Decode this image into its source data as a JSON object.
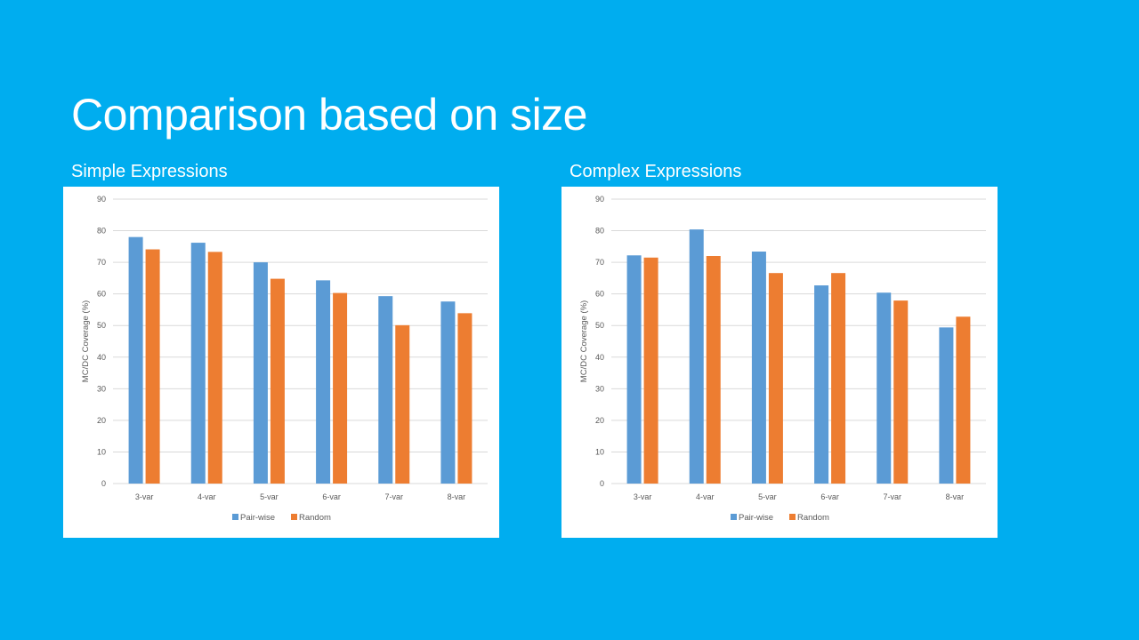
{
  "slide": {
    "title": "Comparison based on size",
    "left_subtitle": "Simple Expressions",
    "right_subtitle": "Complex Expressions"
  },
  "colors": {
    "background": "#00adef",
    "pair_wise": "#5b9bd5",
    "random": "#ed7d31",
    "gridline": "#d9d9d9"
  },
  "chart_data": [
    {
      "type": "bar",
      "title": "",
      "categories": [
        "3-var",
        "4-var",
        "5-var",
        "6-var",
        "7-var",
        "8-var"
      ],
      "series": [
        {
          "name": "Pair-wise",
          "values": [
            78,
            76.2,
            70,
            64.3,
            59.3,
            57.6
          ]
        },
        {
          "name": "Random",
          "values": [
            74.1,
            73.3,
            64.8,
            60.3,
            50.1,
            53.9
          ]
        }
      ],
      "xlabel": "",
      "ylabel": "MC/DC Coverage (%)",
      "ylim": [
        0,
        90
      ],
      "yticks": [
        0,
        10,
        20,
        30,
        40,
        50,
        60,
        70,
        80,
        90
      ],
      "grid": true,
      "legend": "bottom"
    },
    {
      "type": "bar",
      "title": "",
      "categories": [
        "3-var",
        "4-var",
        "5-var",
        "6-var",
        "7-var",
        "8-var"
      ],
      "series": [
        {
          "name": "Pair-wise",
          "values": [
            72.2,
            80.4,
            73.4,
            62.7,
            60.4,
            49.4
          ]
        },
        {
          "name": "Random",
          "values": [
            71.5,
            72,
            66.6,
            66.6,
            57.9,
            52.8
          ]
        }
      ],
      "xlabel": "",
      "ylabel": "MC/DC Coverage (%)",
      "ylim": [
        0,
        90
      ],
      "yticks": [
        0,
        10,
        20,
        30,
        40,
        50,
        60,
        70,
        80,
        90
      ],
      "grid": true,
      "legend": "bottom"
    }
  ]
}
